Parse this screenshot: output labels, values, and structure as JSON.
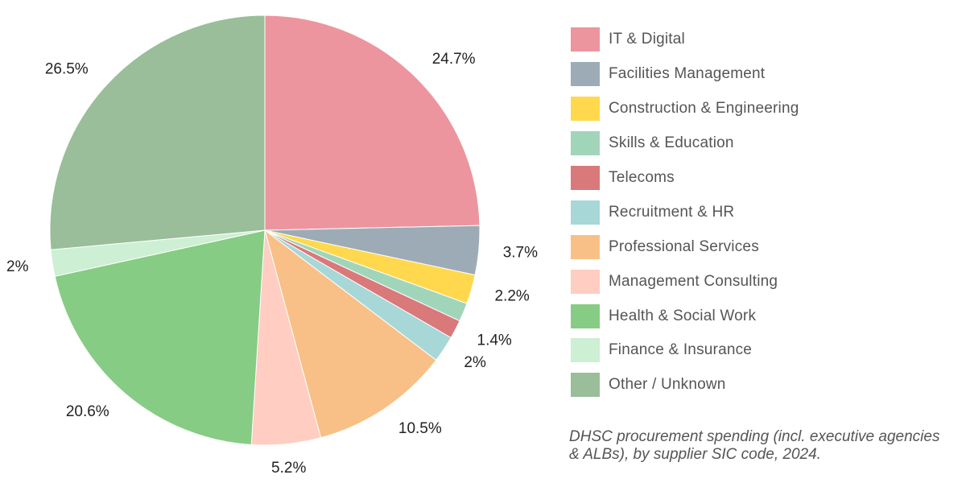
{
  "chart_data": {
    "type": "pie",
    "title": "",
    "caption": "DHSC procurement spending (incl. executive agencies & ALBs), by supplier SIC code, 2024.",
    "legend_placement": "right",
    "start_angle": "12 o'clock",
    "direction": "clockwise",
    "slices": [
      {
        "name": "IT & Digital",
        "value": 24.7,
        "label": "24.7%",
        "color": "#EC959E"
      },
      {
        "name": "Facilities Management",
        "value": 3.7,
        "label": "3.7%",
        "color": "#9DABB6"
      },
      {
        "name": "Construction & Engineering",
        "value": 2.2,
        "label": "2.2%",
        "color": "#FFD84D"
      },
      {
        "name": "Skills & Education",
        "value": 1.4,
        "label": "",
        "color": "#A1D5B9"
      },
      {
        "name": "Telecoms",
        "value": 1.4,
        "label": "1.4%",
        "color": "#D9797A"
      },
      {
        "name": "Recruitment & HR",
        "value": 2.0,
        "label": "2%",
        "color": "#A8D7D8"
      },
      {
        "name": "Professional Services",
        "value": 10.5,
        "label": "10.5%",
        "color": "#F8C086"
      },
      {
        "name": "Management Consulting",
        "value": 5.2,
        "label": "5.2%",
        "color": "#FFCDC1"
      },
      {
        "name": "Health & Social Work",
        "value": 20.6,
        "label": "20.6%",
        "color": "#86CC84"
      },
      {
        "name": "Finance & Insurance",
        "value": 2.0,
        "label": "2%",
        "color": "#CDEFD3"
      },
      {
        "name": "Other / Unknown",
        "value": 26.5,
        "label": "26.5%",
        "color": "#99BE99"
      }
    ]
  }
}
